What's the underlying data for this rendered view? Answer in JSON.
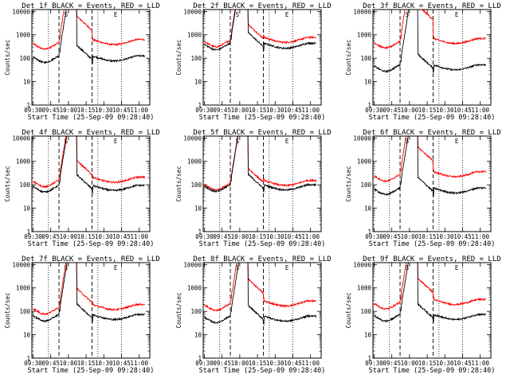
{
  "colors": {
    "events": "#000000",
    "lld": "#ff0000",
    "axis": "#000000",
    "background": "#ffffff"
  },
  "chart_data": {
    "type": "line",
    "layout": "3x3 grid",
    "x_ticks": [
      "09:30",
      "09:45",
      "10:00",
      "10:15",
      "10:30",
      "10:45",
      "11:00"
    ],
    "y_ticks": [
      "1",
      "10",
      "100",
      "1000",
      "10000"
    ],
    "ylabel": "Counts/sec",
    "xlabel": "Start Time (25-Sep-09 09:28:40)",
    "y_scale": "log",
    "ylim": [
      1,
      12000
    ],
    "xlim": [
      "09:29",
      "11:09"
    ],
    "vertical_markers": {
      "dotted": [
        "09:43",
        "10:25",
        "10:45"
      ],
      "dashed": [
        "09:52",
        "10:20"
      ]
    },
    "panel_labels": [
      "S",
      "E"
    ],
    "panels": [
      {
        "title": "Det 1f BLACK = Events, RED = LLD",
        "events_base": 120,
        "lld_base": 450,
        "ratio_after": 3.5
      },
      {
        "title": "Det 2f BLACK = Events, RED = LLD",
        "events_base": 420,
        "lld_base": 560,
        "ratio_after": 1.25
      },
      {
        "title": "Det 3f BLACK = Events, RED = LLD",
        "events_base": 50,
        "lld_base": 500,
        "ratio_after": 9
      },
      {
        "title": "Det 4f BLACK = Events, RED = LLD",
        "events_base": 90,
        "lld_base": 150,
        "ratio_after": 1.8
      },
      {
        "title": "Det 5f BLACK = Events, RED = LLD",
        "events_base": 95,
        "lld_base": 110,
        "ratio_after": 1.15
      },
      {
        "title": "Det 6f BLACK = Events, RED = LLD",
        "events_base": 70,
        "lld_base": 260,
        "ratio_after": 4
      },
      {
        "title": "Det 7f BLACK = Events, RED = LLD",
        "events_base": 70,
        "lld_base": 140,
        "ratio_after": 1.7
      },
      {
        "title": "Det 8f BLACK = Events, RED = LLD",
        "events_base": 60,
        "lld_base": 200,
        "ratio_after": 3
      },
      {
        "title": "Det 9f BLACK = Events, RED = LLD",
        "events_base": 70,
        "lld_base": 230,
        "ratio_after": 2.8
      }
    ]
  }
}
